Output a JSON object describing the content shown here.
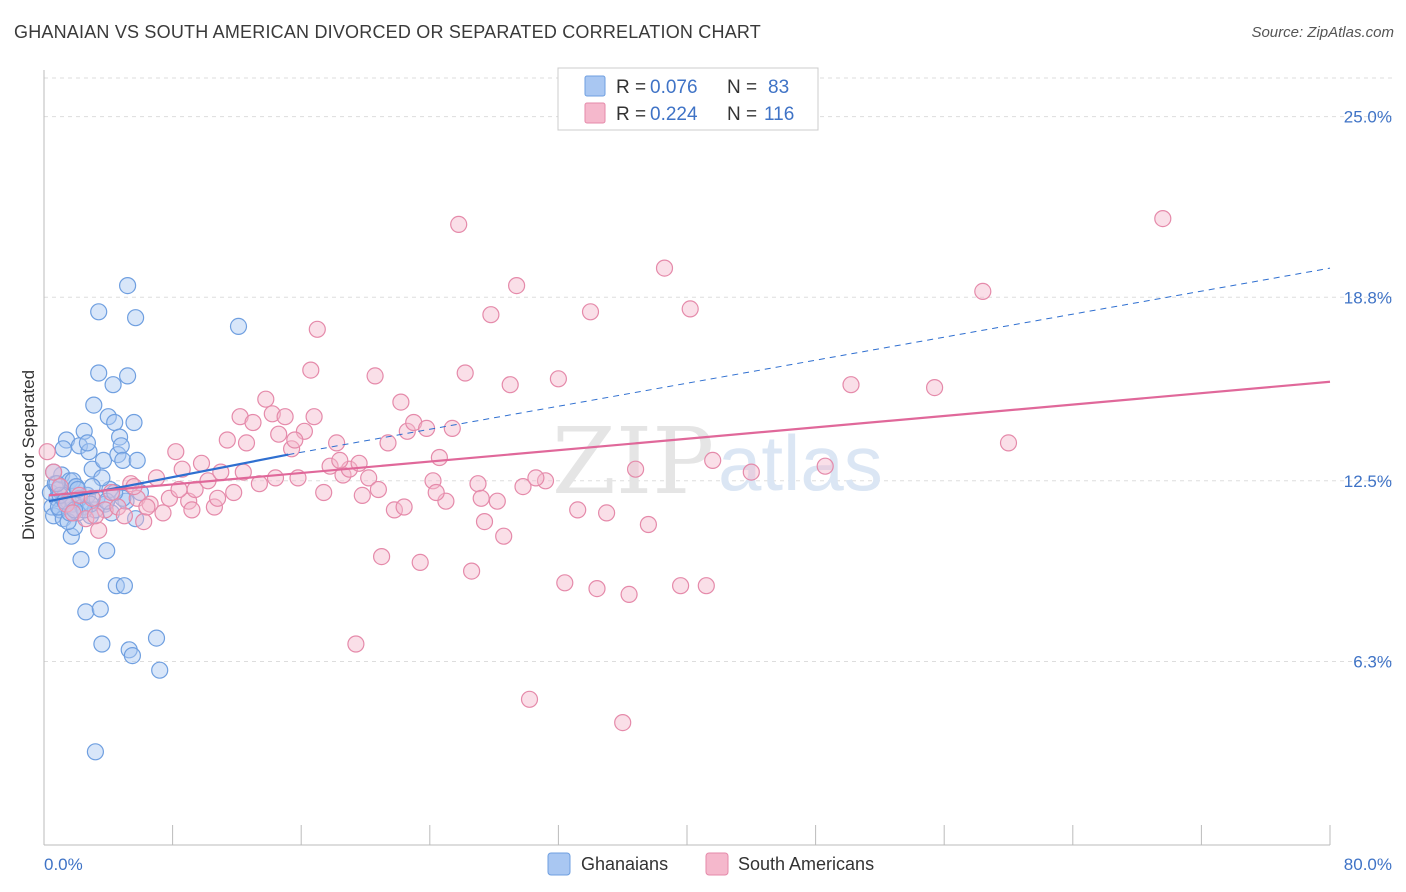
{
  "title": "GHANAIAN VS SOUTH AMERICAN DIVORCED OR SEPARATED CORRELATION CHART",
  "source": "Source: ZipAtlas.com",
  "colors": {
    "blue": "#6f9fe0",
    "blue_fill": "#a9c7f2",
    "blue_line": "#2f6fd0",
    "pink": "#e58aaa",
    "pink_fill": "#f5b8cc",
    "pink_line": "#e0689a",
    "tick_text": "#3f73c6",
    "grid": "#dddddd"
  },
  "legend": {
    "rows": [
      {
        "r_label": "R = ",
        "r_value": "0.076",
        "n_label": "N = ",
        "n_value": "83"
      },
      {
        "r_label": "R = ",
        "r_value": "0.224",
        "n_label": "N = ",
        "n_value": "116"
      }
    ]
  },
  "watermark": {
    "zip": "ZIP",
    "atlas": "atlas"
  },
  "chart_data": {
    "type": "scatter",
    "title": "GHANAIAN VS SOUTH AMERICAN DIVORCED OR SEPARATED CORRELATION CHART",
    "xlabel": "",
    "ylabel": "Divorced or Separated",
    "xlim": [
      0,
      80
    ],
    "ylim": [
      0,
      26.6
    ],
    "x_tick_labels": [
      "0.0%",
      "80.0%"
    ],
    "y_ticks": [
      {
        "value": 6.3,
        "label": "6.3%"
      },
      {
        "value": 12.5,
        "label": "12.5%"
      },
      {
        "value": 18.8,
        "label": "18.8%"
      },
      {
        "value": 25.0,
        "label": "25.0%"
      }
    ],
    "series": [
      {
        "name": "Ghanaians",
        "r": 0.076,
        "n": 83,
        "trend": {
          "x": [
            0.3,
            15.2
          ],
          "y": [
            11.8,
            13.4
          ]
        },
        "trend_ext": {
          "x": [
            15.2,
            80
          ],
          "y": [
            13.4,
            19.8
          ]
        },
        "points": [
          [
            0.4,
            12.1
          ],
          [
            0.5,
            11.6
          ],
          [
            0.6,
            11.3
          ],
          [
            0.7,
            12.4
          ],
          [
            0.8,
            11.9
          ],
          [
            0.9,
            12.2
          ],
          [
            1.0,
            11.5
          ],
          [
            1.1,
            12.7
          ],
          [
            1.2,
            11.2
          ],
          [
            1.3,
            12.0
          ],
          [
            1.4,
            13.9
          ],
          [
            1.5,
            11.8
          ],
          [
            1.6,
            12.5
          ],
          [
            1.7,
            10.6
          ],
          [
            1.8,
            11.7
          ],
          [
            1.9,
            10.9
          ],
          [
            2.0,
            12.3
          ],
          [
            2.1,
            11.4
          ],
          [
            2.2,
            13.7
          ],
          [
            2.3,
            9.8
          ],
          [
            2.4,
            11.6
          ],
          [
            2.5,
            14.2
          ],
          [
            2.6,
            8.0
          ],
          [
            2.7,
            12.0
          ],
          [
            2.8,
            13.5
          ],
          [
            2.9,
            11.3
          ],
          [
            3.0,
            12.9
          ],
          [
            3.1,
            15.1
          ],
          [
            3.2,
            11.5
          ],
          [
            3.3,
            11.9
          ],
          [
            3.4,
            16.2
          ],
          [
            3.5,
            8.1
          ],
          [
            3.6,
            6.9
          ],
          [
            3.7,
            13.2
          ],
          [
            3.8,
            11.7
          ],
          [
            3.9,
            10.1
          ],
          [
            4.0,
            14.7
          ],
          [
            4.1,
            12.2
          ],
          [
            4.2,
            11.4
          ],
          [
            4.3,
            15.8
          ],
          [
            4.4,
            14.5
          ],
          [
            4.5,
            8.9
          ],
          [
            4.6,
            13.4
          ],
          [
            4.7,
            14.0
          ],
          [
            4.8,
            13.7
          ],
          [
            4.9,
            13.2
          ],
          [
            5.0,
            8.9
          ],
          [
            5.1,
            11.8
          ],
          [
            5.2,
            16.1
          ],
          [
            5.3,
            6.7
          ],
          [
            5.5,
            6.5
          ],
          [
            5.6,
            14.5
          ],
          [
            5.7,
            18.1
          ],
          [
            5.8,
            13.2
          ],
          [
            6.0,
            12.1
          ],
          [
            7.0,
            7.1
          ],
          [
            7.2,
            6.0
          ],
          [
            3.4,
            18.3
          ],
          [
            5.2,
            19.2
          ],
          [
            12.1,
            17.8
          ],
          [
            5.7,
            11.2
          ],
          [
            3.2,
            3.2
          ],
          [
            1.8,
            12.5
          ],
          [
            2.0,
            12.3
          ],
          [
            0.9,
            11.6
          ],
          [
            1.5,
            11.1
          ],
          [
            2.7,
            13.8
          ],
          [
            4.9,
            11.9
          ],
          [
            1.2,
            13.6
          ],
          [
            3.6,
            12.6
          ],
          [
            0.6,
            12.8
          ],
          [
            1.0,
            12.0
          ],
          [
            2.2,
            11.9
          ],
          [
            2.9,
            11.7
          ],
          [
            3.9,
            11.8
          ],
          [
            4.4,
            12.1
          ],
          [
            1.6,
            11.4
          ],
          [
            2.5,
            11.5
          ],
          [
            0.8,
            12.4
          ],
          [
            1.3,
            11.8
          ],
          [
            2.1,
            12.2
          ],
          [
            3.0,
            12.3
          ],
          [
            1.9,
            11.5
          ]
        ]
      },
      {
        "name": "South Americans",
        "r": 0.224,
        "n": 116,
        "trend": {
          "x": [
            0.3,
            80
          ],
          "y": [
            12.0,
            15.9
          ]
        },
        "points": [
          [
            0.2,
            13.5
          ],
          [
            0.6,
            12.8
          ],
          [
            1.0,
            12.3
          ],
          [
            1.4,
            11.7
          ],
          [
            1.8,
            11.4
          ],
          [
            2.2,
            12.0
          ],
          [
            2.6,
            11.2
          ],
          [
            3.0,
            11.9
          ],
          [
            3.4,
            10.8
          ],
          [
            3.8,
            11.5
          ],
          [
            4.2,
            12.1
          ],
          [
            4.6,
            11.6
          ],
          [
            5.0,
            11.3
          ],
          [
            5.4,
            12.4
          ],
          [
            5.8,
            11.9
          ],
          [
            6.2,
            11.1
          ],
          [
            6.6,
            11.7
          ],
          [
            7.0,
            12.6
          ],
          [
            7.4,
            11.4
          ],
          [
            7.8,
            11.9
          ],
          [
            8.2,
            13.5
          ],
          [
            8.6,
            12.9
          ],
          [
            9.0,
            11.8
          ],
          [
            9.4,
            12.2
          ],
          [
            9.8,
            13.1
          ],
          [
            10.2,
            12.5
          ],
          [
            10.6,
            11.6
          ],
          [
            11.0,
            12.8
          ],
          [
            11.4,
            13.9
          ],
          [
            11.8,
            12.1
          ],
          [
            12.2,
            14.7
          ],
          [
            12.6,
            13.8
          ],
          [
            13.0,
            14.5
          ],
          [
            13.4,
            12.4
          ],
          [
            13.8,
            15.3
          ],
          [
            14.2,
            14.8
          ],
          [
            14.6,
            14.1
          ],
          [
            15.0,
            14.7
          ],
          [
            15.4,
            13.6
          ],
          [
            15.8,
            12.6
          ],
          [
            16.2,
            14.2
          ],
          [
            16.6,
            16.3
          ],
          [
            17.0,
            17.7
          ],
          [
            17.4,
            12.1
          ],
          [
            17.8,
            13.0
          ],
          [
            18.2,
            13.8
          ],
          [
            18.6,
            12.7
          ],
          [
            19.0,
            12.9
          ],
          [
            19.4,
            6.9
          ],
          [
            19.8,
            12.0
          ],
          [
            20.2,
            12.6
          ],
          [
            20.6,
            16.1
          ],
          [
            21.0,
            9.9
          ],
          [
            21.4,
            13.8
          ],
          [
            21.8,
            11.5
          ],
          [
            22.2,
            15.2
          ],
          [
            22.6,
            14.2
          ],
          [
            23.0,
            14.5
          ],
          [
            23.4,
            9.7
          ],
          [
            23.8,
            14.3
          ],
          [
            24.2,
            12.5
          ],
          [
            24.6,
            13.3
          ],
          [
            25.0,
            11.8
          ],
          [
            25.4,
            14.3
          ],
          [
            25.8,
            21.3
          ],
          [
            26.2,
            16.2
          ],
          [
            26.6,
            9.4
          ],
          [
            27.0,
            12.4
          ],
          [
            27.4,
            11.1
          ],
          [
            27.8,
            18.2
          ],
          [
            28.2,
            11.8
          ],
          [
            28.6,
            10.6
          ],
          [
            29.0,
            15.8
          ],
          [
            29.4,
            19.2
          ],
          [
            29.8,
            12.3
          ],
          [
            30.2,
            5.0
          ],
          [
            31.2,
            12.5
          ],
          [
            32.0,
            16.0
          ],
          [
            32.4,
            9.0
          ],
          [
            34.0,
            18.3
          ],
          [
            34.4,
            8.8
          ],
          [
            35.0,
            11.4
          ],
          [
            36.0,
            4.2
          ],
          [
            36.4,
            8.6
          ],
          [
            37.6,
            11.0
          ],
          [
            38.6,
            19.8
          ],
          [
            39.6,
            8.9
          ],
          [
            40.2,
            18.4
          ],
          [
            41.6,
            13.2
          ],
          [
            48.6,
            13.0
          ],
          [
            50.2,
            15.8
          ],
          [
            55.4,
            15.7
          ],
          [
            60.0,
            13.8
          ],
          [
            69.6,
            21.5
          ],
          [
            58.4,
            19.0
          ],
          [
            3.2,
            11.3
          ],
          [
            5.6,
            12.3
          ],
          [
            6.4,
            11.6
          ],
          [
            8.4,
            12.2
          ],
          [
            9.2,
            11.5
          ],
          [
            10.8,
            11.9
          ],
          [
            12.4,
            12.8
          ],
          [
            14.4,
            12.6
          ],
          [
            15.6,
            13.9
          ],
          [
            16.8,
            14.7
          ],
          [
            18.4,
            13.2
          ],
          [
            19.6,
            13.1
          ],
          [
            20.8,
            12.2
          ],
          [
            22.4,
            11.6
          ],
          [
            24.4,
            12.1
          ],
          [
            27.2,
            11.9
          ],
          [
            30.6,
            12.6
          ],
          [
            33.2,
            11.5
          ],
          [
            36.8,
            12.9
          ],
          [
            41.2,
            8.9
          ],
          [
            44.0,
            12.8
          ]
        ]
      }
    ]
  },
  "bottom_legend": [
    {
      "label": "Ghanaians"
    },
    {
      "label": "South Americans"
    }
  ]
}
